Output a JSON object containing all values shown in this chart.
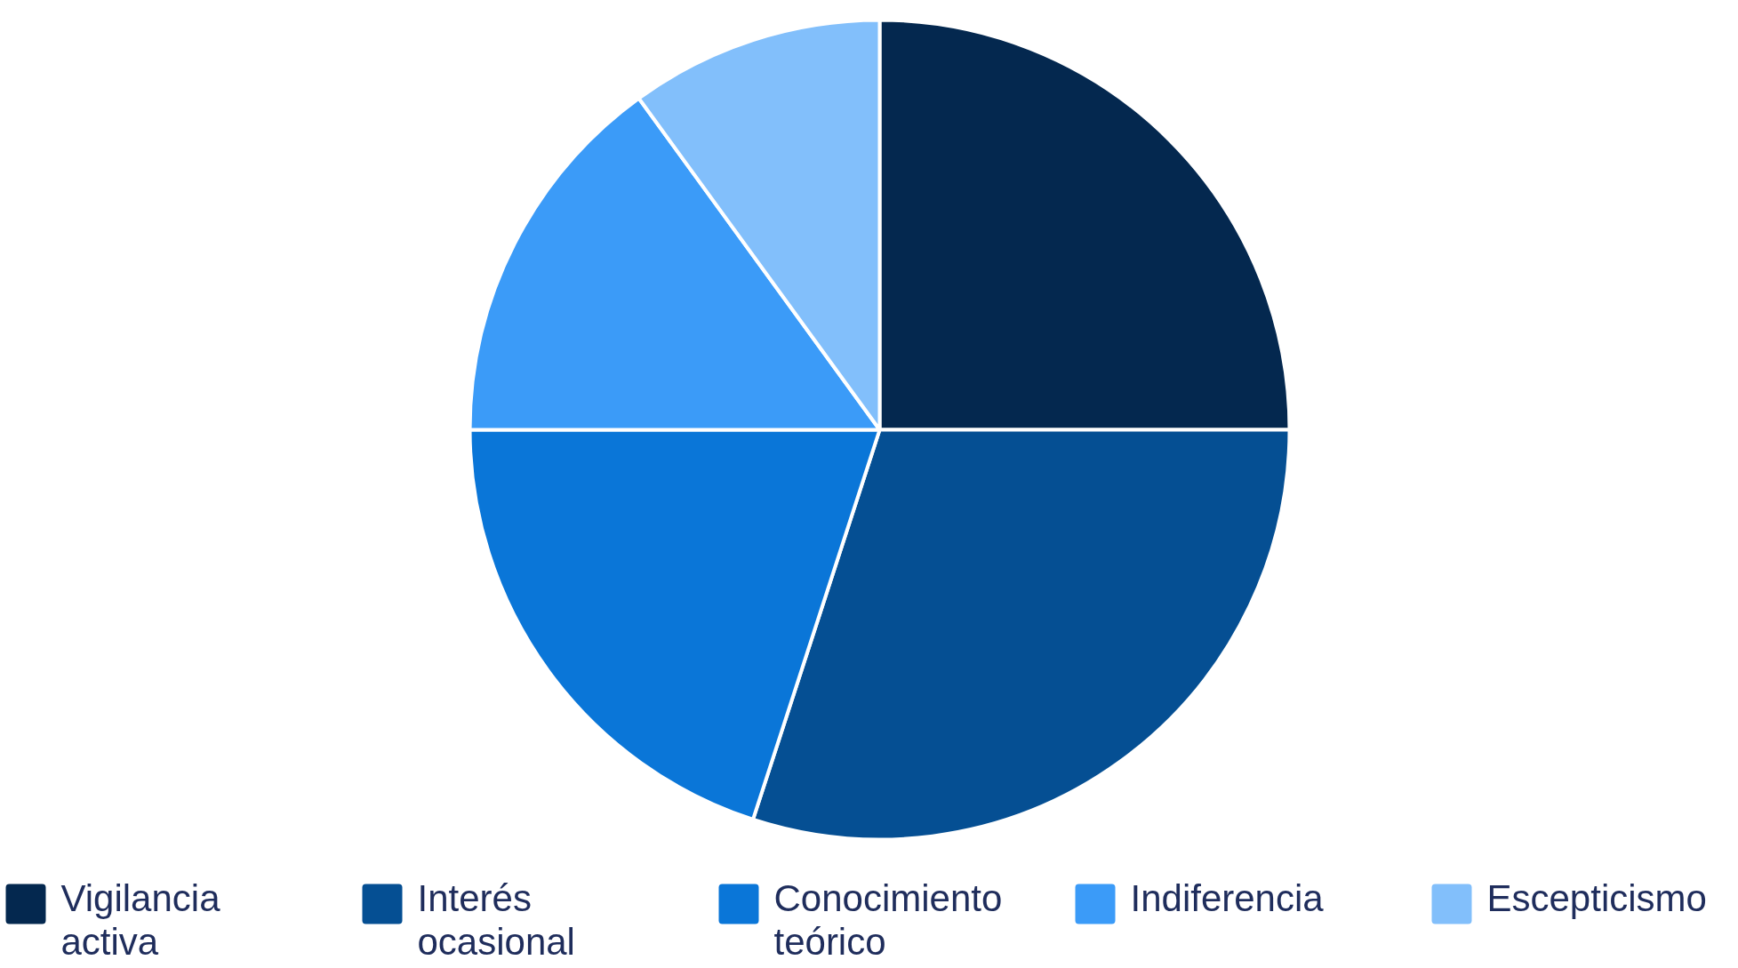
{
  "chart_data": {
    "type": "pie",
    "categories": [
      "Vigilancia activa",
      "Interés ocasional",
      "Conocimiento teórico",
      "Indiferencia",
      "Escepticismo"
    ],
    "values": [
      25,
      30,
      20,
      15,
      10
    ],
    "colors": [
      "#04284f",
      "#054f93",
      "#0a76d8",
      "#3b9bf8",
      "#82bffb"
    ],
    "legend": "bottom"
  }
}
